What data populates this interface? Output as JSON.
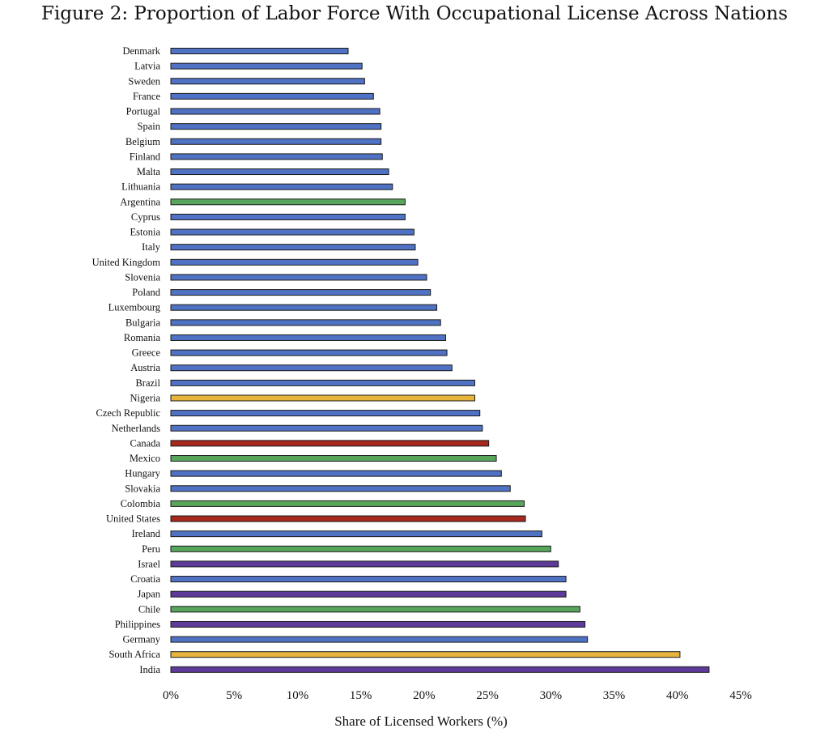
{
  "title": "Figure 2: Proportion of Labor Force With Occupational License Across Nations",
  "colors": {
    "blue": "#4F72C4",
    "green": "#58A65C",
    "yellow": "#E8B53C",
    "red": "#A8281E",
    "purple": "#5E3A9A",
    "outline": "#1a1a1a"
  },
  "chart_data": {
    "type": "bar",
    "orientation": "horizontal",
    "title": "Figure 2: Proportion of Labor Force With Occupational License Across Nations",
    "xlabel": "Share of Licensed Workers (%)",
    "ylabel": "",
    "xlim": [
      0,
      45
    ],
    "xticks": [
      "0%",
      "5%",
      "10%",
      "15%",
      "20%",
      "25%",
      "30%",
      "35%",
      "40%",
      "45%"
    ],
    "grid": false,
    "bars": [
      {
        "category": "Denmark",
        "value": 14.0,
        "color": "blue"
      },
      {
        "category": "Latvia",
        "value": 15.1,
        "color": "blue"
      },
      {
        "category": "Sweden",
        "value": 15.3,
        "color": "blue"
      },
      {
        "category": "France",
        "value": 16.0,
        "color": "blue"
      },
      {
        "category": "Portugal",
        "value": 16.5,
        "color": "blue"
      },
      {
        "category": "Spain",
        "value": 16.6,
        "color": "blue"
      },
      {
        "category": "Belgium",
        "value": 16.6,
        "color": "blue"
      },
      {
        "category": "Finland",
        "value": 16.7,
        "color": "blue"
      },
      {
        "category": "Malta",
        "value": 17.2,
        "color": "blue"
      },
      {
        "category": "Lithuania",
        "value": 17.5,
        "color": "blue"
      },
      {
        "category": "Argentina",
        "value": 18.5,
        "color": "green"
      },
      {
        "category": "Cyprus",
        "value": 18.5,
        "color": "blue"
      },
      {
        "category": "Estonia",
        "value": 19.2,
        "color": "blue"
      },
      {
        "category": "Italy",
        "value": 19.3,
        "color": "blue"
      },
      {
        "category": "United Kingdom",
        "value": 19.5,
        "color": "blue"
      },
      {
        "category": "Slovenia",
        "value": 20.2,
        "color": "blue"
      },
      {
        "category": "Poland",
        "value": 20.5,
        "color": "blue"
      },
      {
        "category": "Luxembourg",
        "value": 21.0,
        "color": "blue"
      },
      {
        "category": "Bulgaria",
        "value": 21.3,
        "color": "blue"
      },
      {
        "category": "Romania",
        "value": 21.7,
        "color": "blue"
      },
      {
        "category": "Greece",
        "value": 21.8,
        "color": "blue"
      },
      {
        "category": "Austria",
        "value": 22.2,
        "color": "blue"
      },
      {
        "category": "Brazil",
        "value": 24.0,
        "color": "blue"
      },
      {
        "category": "Nigeria",
        "value": 24.0,
        "color": "yellow"
      },
      {
        "category": "Czech Republic",
        "value": 24.4,
        "color": "blue"
      },
      {
        "category": "Netherlands",
        "value": 24.6,
        "color": "blue"
      },
      {
        "category": "Canada",
        "value": 25.1,
        "color": "red"
      },
      {
        "category": "Mexico",
        "value": 25.7,
        "color": "green"
      },
      {
        "category": "Hungary",
        "value": 26.1,
        "color": "blue"
      },
      {
        "category": "Slovakia",
        "value": 26.8,
        "color": "blue"
      },
      {
        "category": "Colombia",
        "value": 27.9,
        "color": "green"
      },
      {
        "category": "United States",
        "value": 28.0,
        "color": "red"
      },
      {
        "category": "Ireland",
        "value": 29.3,
        "color": "blue"
      },
      {
        "category": "Peru",
        "value": 30.0,
        "color": "green"
      },
      {
        "category": "Israel",
        "value": 30.6,
        "color": "purple"
      },
      {
        "category": "Croatia",
        "value": 31.2,
        "color": "blue"
      },
      {
        "category": "Japan",
        "value": 31.2,
        "color": "purple"
      },
      {
        "category": "Chile",
        "value": 32.3,
        "color": "green"
      },
      {
        "category": "Philippines",
        "value": 32.7,
        "color": "purple"
      },
      {
        "category": "Germany",
        "value": 32.9,
        "color": "blue"
      },
      {
        "category": "South Africa",
        "value": 40.2,
        "color": "yellow"
      },
      {
        "category": "India",
        "value": 42.5,
        "color": "purple"
      }
    ]
  }
}
